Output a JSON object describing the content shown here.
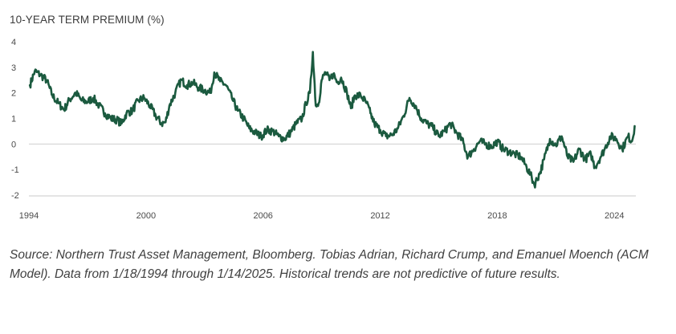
{
  "chart_data": {
    "type": "line",
    "title": "10-YEAR TERM PREMIUM (%)",
    "xlabel": "",
    "ylabel": "",
    "x_ticks": [
      "1994",
      "2000",
      "2006",
      "2012",
      "2018",
      "2024"
    ],
    "y_ticks": [
      "4",
      "3",
      "2",
      "1",
      "0",
      "-1",
      "-2"
    ],
    "xlim": [
      1994.0,
      2025.1
    ],
    "ylim": [
      -2,
      4
    ],
    "grid": "zero-line only",
    "legend": "none",
    "line_color": "#1b5a3f",
    "series": [
      {
        "x": [
          1994.05,
          1994.3,
          1994.6,
          1994.9,
          1995.2,
          1995.5,
          1995.8,
          1996.1,
          1996.4,
          1996.7,
          1997.0,
          1997.3,
          1997.6,
          1997.9,
          1998.2,
          1998.5,
          1998.75,
          1999.0,
          1999.3,
          1999.6,
          1999.9,
          2000.2,
          2000.5,
          2000.8,
          2001.0,
          2001.2,
          2001.5,
          2001.8,
          2002.1,
          2002.4,
          2002.7,
          2003.0,
          2003.3,
          2003.5,
          2003.8,
          2004.1,
          2004.4,
          2004.7,
          2005.0,
          2005.3,
          2005.6,
          2005.9,
          2006.2,
          2006.5,
          2006.8,
          2007.1,
          2007.4,
          2007.7,
          2008.0,
          2008.2,
          2008.4,
          2008.55,
          2008.7,
          2008.85,
          2009.0,
          2009.2,
          2009.4,
          2009.6,
          2009.8,
          2010.0,
          2010.3,
          2010.5,
          2010.7,
          2011.0,
          2011.3,
          2011.5,
          2011.7,
          2012.0,
          2012.3,
          2012.6,
          2012.9,
          2013.2,
          2013.5,
          2013.8,
          2014.1,
          2014.4,
          2014.7,
          2015.0,
          2015.3,
          2015.6,
          2015.9,
          2016.2,
          2016.5,
          2016.8,
          2017.1,
          2017.4,
          2017.7,
          2018.0,
          2018.3,
          2018.6,
          2018.9,
          2019.2,
          2019.5,
          2019.7,
          2019.9,
          2020.2,
          2020.4,
          2020.7,
          2021.0,
          2021.3,
          2021.6,
          2021.9,
          2022.2,
          2022.5,
          2022.8,
          2023.0,
          2023.3,
          2023.5,
          2023.8,
          2024.1,
          2024.4,
          2024.7,
          2024.9,
          2025.04
        ],
        "y": [
          2.3,
          2.85,
          2.7,
          2.5,
          1.9,
          1.6,
          1.35,
          1.75,
          2.0,
          1.7,
          1.65,
          1.8,
          1.5,
          1.2,
          1.0,
          0.95,
          0.8,
          1.2,
          1.3,
          1.7,
          1.8,
          1.5,
          1.1,
          0.8,
          0.85,
          1.5,
          2.0,
          2.5,
          2.3,
          2.4,
          2.2,
          2.1,
          2.0,
          2.8,
          2.45,
          2.3,
          1.8,
          1.3,
          1.0,
          0.6,
          0.45,
          0.3,
          0.55,
          0.5,
          0.3,
          0.2,
          0.45,
          0.8,
          1.0,
          1.6,
          2.0,
          3.6,
          1.5,
          1.6,
          2.5,
          2.8,
          2.5,
          2.75,
          2.4,
          2.6,
          2.0,
          1.4,
          1.9,
          1.9,
          1.6,
          1.2,
          0.8,
          0.55,
          0.3,
          0.35,
          0.6,
          1.1,
          1.8,
          1.5,
          1.0,
          0.8,
          0.65,
          0.3,
          0.5,
          0.8,
          0.45,
          0.15,
          -0.5,
          -0.2,
          0.1,
          0.0,
          -0.1,
          0.1,
          -0.2,
          -0.3,
          -0.4,
          -0.5,
          -0.9,
          -1.2,
          -1.6,
          -1.1,
          -0.6,
          0.2,
          -0.05,
          0.3,
          -0.5,
          -0.7,
          -0.2,
          -0.6,
          -0.4,
          -0.9,
          -0.5,
          -0.2,
          0.3,
          0.2,
          -0.2,
          0.3,
          0.1,
          0.7
        ]
      }
    ]
  },
  "source": "Source: Northern Trust Asset Management, Bloomberg. Tobias Adrian, Richard Crump, and Emanuel Moench (ACM Model). Data from 1/18/1994 through 1/14/2025. Historical trends are not predictive of future results."
}
